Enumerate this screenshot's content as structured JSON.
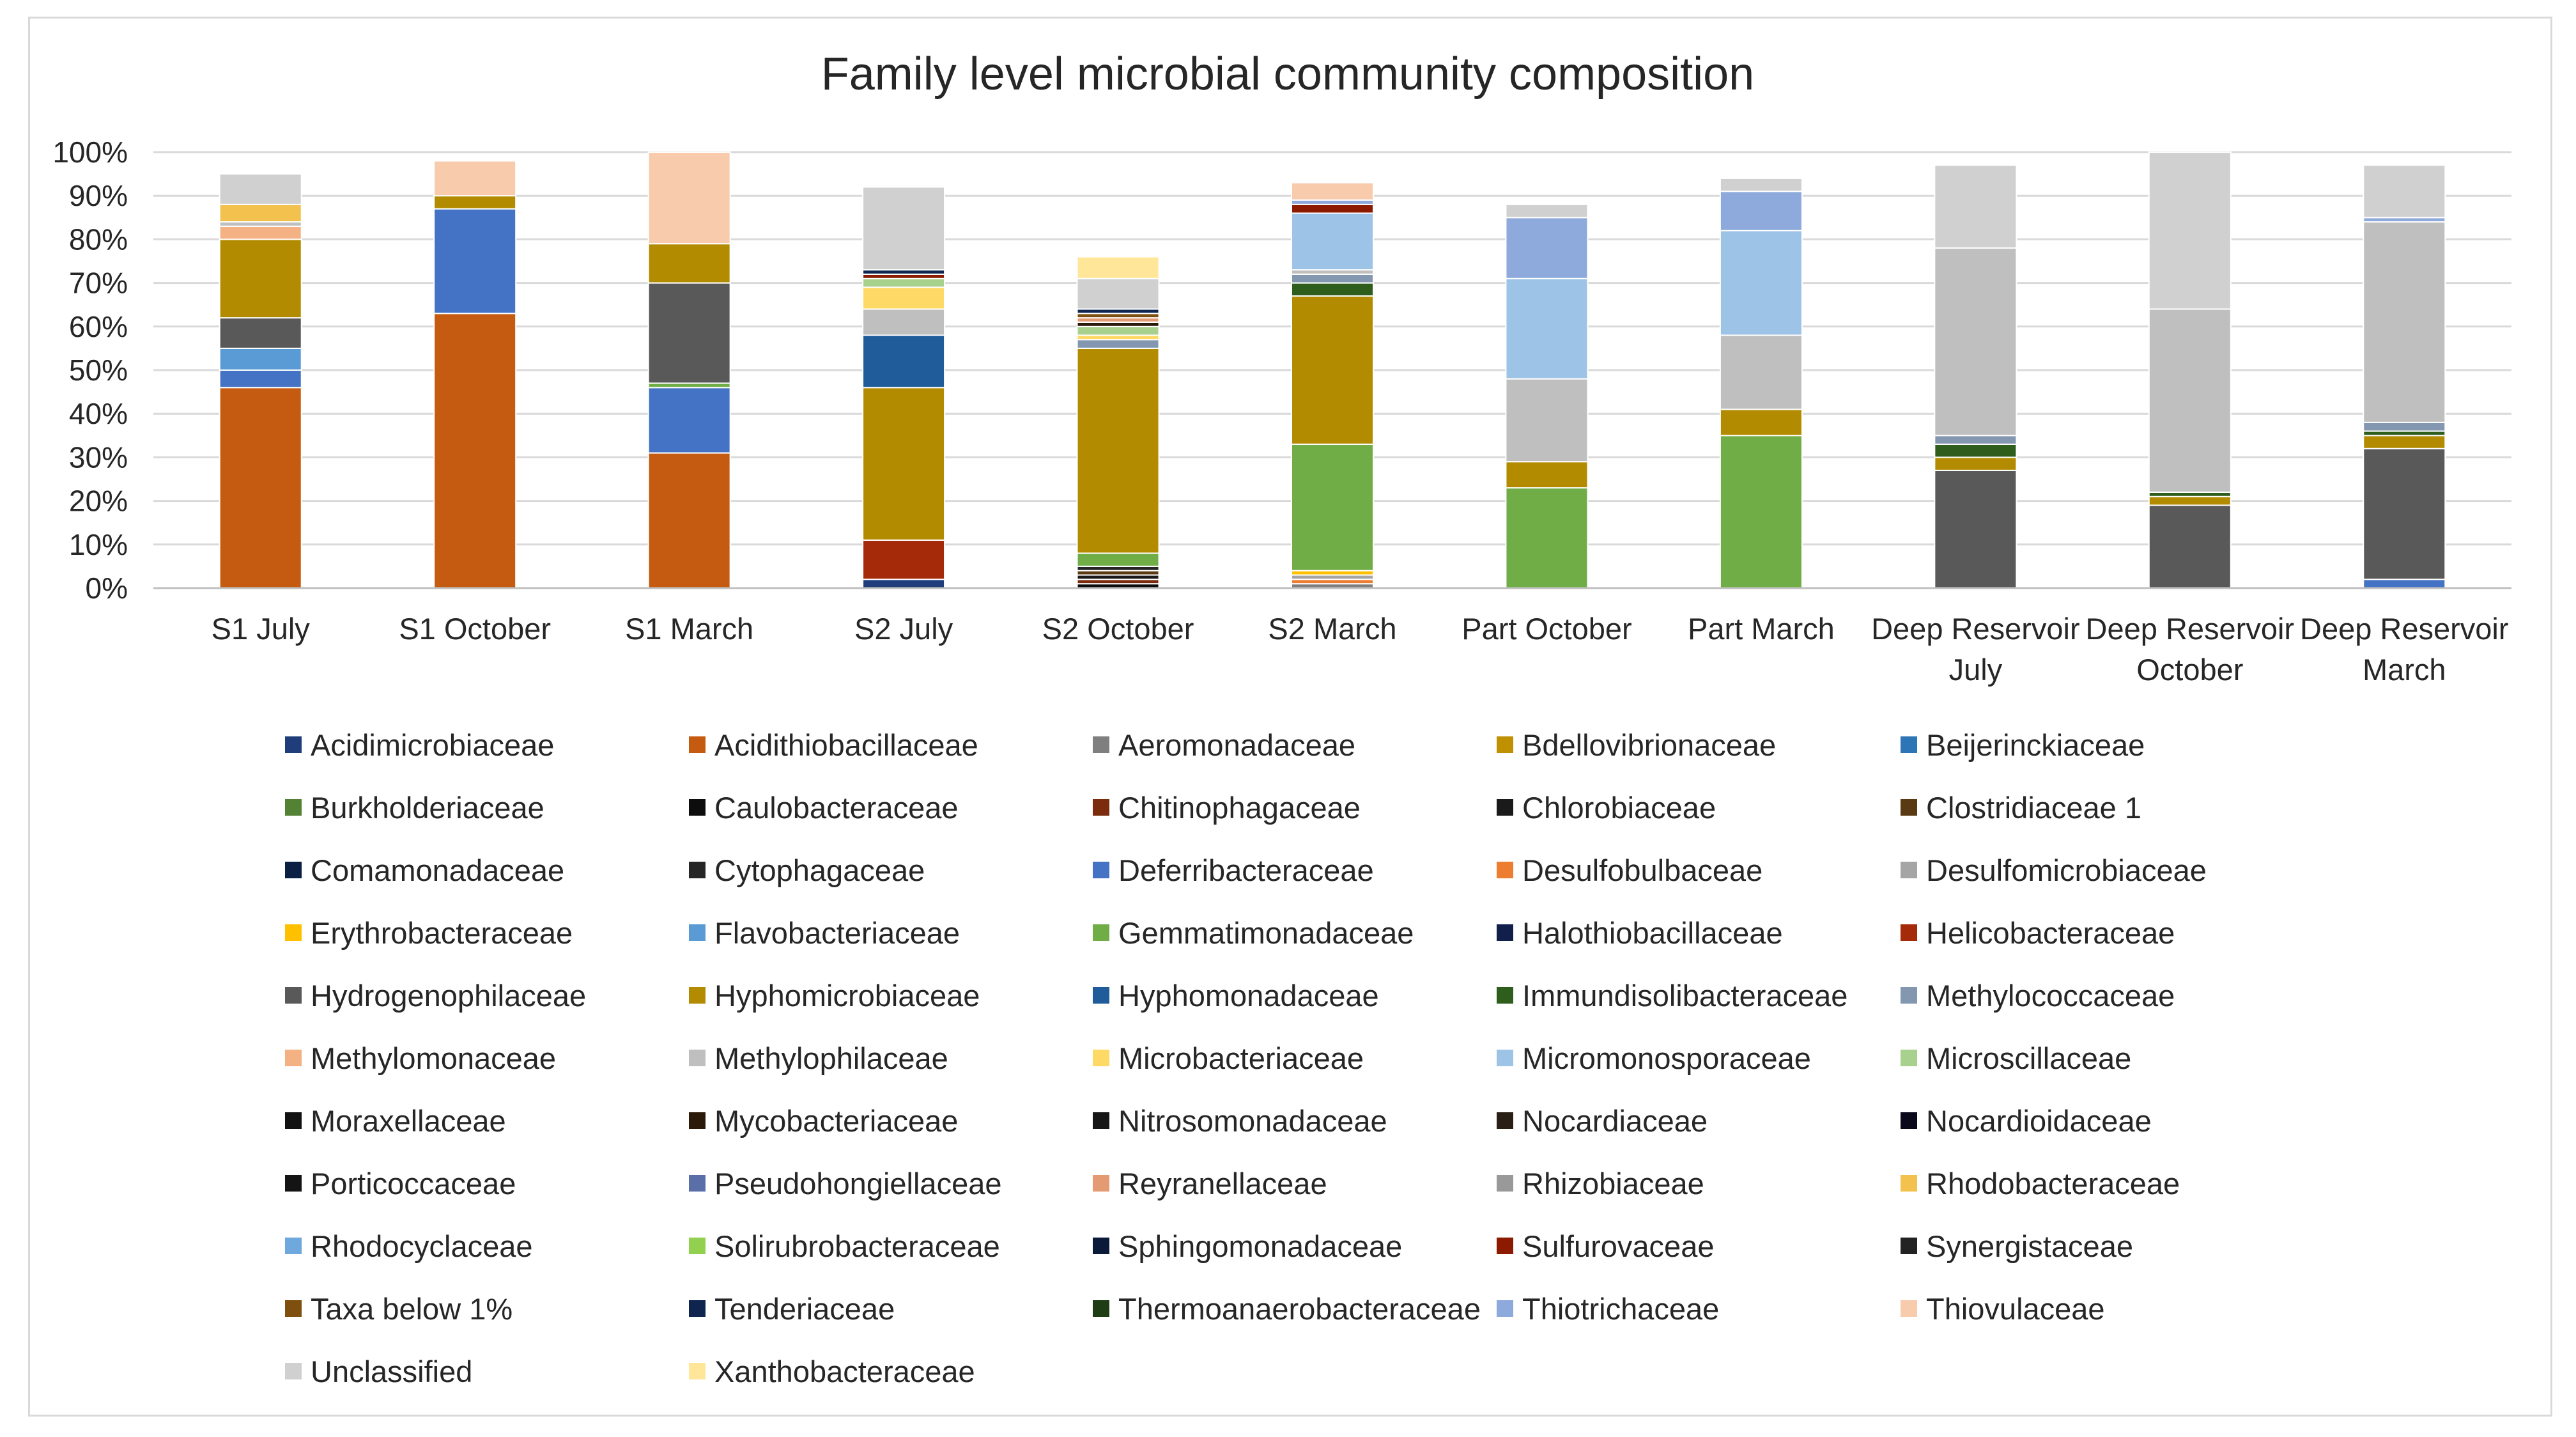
{
  "chart_data": {
    "type": "bar",
    "stacked": true,
    "title": "Family level microbial community composition",
    "xlabel": "",
    "ylabel": "",
    "ylim": [
      0,
      100
    ],
    "yticks": [
      "0%",
      "10%",
      "20%",
      "30%",
      "40%",
      "50%",
      "60%",
      "70%",
      "80%",
      "90%",
      "100%"
    ],
    "grid": true,
    "legend_position": "bottom",
    "categories": [
      [
        "S1 July"
      ],
      [
        "S1 October"
      ],
      [
        "S1 March"
      ],
      [
        "S2 July"
      ],
      [
        "S2 October"
      ],
      [
        "S2 March"
      ],
      [
        "Part October"
      ],
      [
        "Part March"
      ],
      [
        "Deep Reservoir",
        "July"
      ],
      [
        "Deep Reservoir",
        "October"
      ],
      [
        "Deep Reservoir",
        "March"
      ]
    ],
    "legend": [
      {
        "name": "Acidimicrobiaceae",
        "color": "#1f3d7a"
      },
      {
        "name": "Acidithiobacillaceae",
        "color": "#c55a11"
      },
      {
        "name": "Aeromonadaceae",
        "color": "#7f7f7f"
      },
      {
        "name": "Bdellovibrionaceae",
        "color": "#bf9000"
      },
      {
        "name": "Beijerinckiaceae",
        "color": "#2e75b6"
      },
      {
        "name": "Burkholderiaceae",
        "color": "#548235"
      },
      {
        "name": "Caulobacteraceae",
        "color": "#0d0d0d"
      },
      {
        "name": "Chitinophagaceae",
        "color": "#7b2c0c"
      },
      {
        "name": "Chlorobiaceae",
        "color": "#1a1a1a"
      },
      {
        "name": "Clostridiaceae 1",
        "color": "#5a3a12"
      },
      {
        "name": "Comamonadaceae",
        "color": "#0b1f45"
      },
      {
        "name": "Cytophagaceae",
        "color": "#262626"
      },
      {
        "name": "Deferribacteraceae",
        "color": "#4472c4"
      },
      {
        "name": "Desulfobulbaceae",
        "color": "#ed7d31"
      },
      {
        "name": "Desulfomicrobiaceae",
        "color": "#a5a5a5"
      },
      {
        "name": "Erythrobacteraceae",
        "color": "#ffc000"
      },
      {
        "name": "Flavobacteriaceae",
        "color": "#5b9bd5"
      },
      {
        "name": "Gemmatimonadaceae",
        "color": "#70ad47"
      },
      {
        "name": "Halothiobacillaceae",
        "color": "#10204a"
      },
      {
        "name": "Helicobacteraceae",
        "color": "#a52a0a"
      },
      {
        "name": "Hydrogenophilaceae",
        "color": "#595959"
      },
      {
        "name": "Hyphomicrobiaceae",
        "color": "#b38b00"
      },
      {
        "name": "Hyphomonadaceae",
        "color": "#1f5c99"
      },
      {
        "name": "Immundisolibacteraceae",
        "color": "#2e5d1c"
      },
      {
        "name": "Methylococcaceae",
        "color": "#8497b0"
      },
      {
        "name": "Methylomonaceae",
        "color": "#f4b183"
      },
      {
        "name": "Methylophilaceae",
        "color": "#bfbfbf"
      },
      {
        "name": "Microbacteriaceae",
        "color": "#ffd966"
      },
      {
        "name": "Micromonosporaceae",
        "color": "#9dc3e6"
      },
      {
        "name": "Microscillaceae",
        "color": "#a9d18e"
      },
      {
        "name": "Moraxellaceae",
        "color": "#121212"
      },
      {
        "name": "Mycobacteriaceae",
        "color": "#2b1a0a"
      },
      {
        "name": "Nitrosomonadaceae",
        "color": "#161616"
      },
      {
        "name": "Nocardiaceae",
        "color": "#2a1f14"
      },
      {
        "name": "Nocardioidaceae",
        "color": "#0a0a1a"
      },
      {
        "name": "Porticoccaceae",
        "color": "#141414"
      },
      {
        "name": "Pseudohongiellaceae",
        "color": "#5a6fa8"
      },
      {
        "name": "Reyranellaceae",
        "color": "#e49b74"
      },
      {
        "name": "Rhizobiaceae",
        "color": "#999999"
      },
      {
        "name": "Rhodobacteraceae",
        "color": "#f2c14e"
      },
      {
        "name": "Rhodocyclaceae",
        "color": "#6fa8dc"
      },
      {
        "name": "Solirubrobacteraceae",
        "color": "#92d050"
      },
      {
        "name": "Sphingomonadaceae",
        "color": "#0c1a3a"
      },
      {
        "name": "Sulfurovaceae",
        "color": "#8b1a00"
      },
      {
        "name": "Synergistaceae",
        "color": "#222222"
      },
      {
        "name": "Taxa below 1%",
        "color": "#7f4f10"
      },
      {
        "name": "Tenderiaceae",
        "color": "#0f2550"
      },
      {
        "name": "Thermoanaerobacteraceae",
        "color": "#1e3d14"
      },
      {
        "name": "Thiotrichaceae",
        "color": "#8ea9db"
      },
      {
        "name": "Thiovulaceae",
        "color": "#f8cbad"
      },
      {
        "name": "Unclassified",
        "color": "#d0d0d0"
      },
      {
        "name": "Xanthobacteraceae",
        "color": "#ffe699"
      }
    ],
    "series": [
      {
        "name": "Acidimicrobiaceae",
        "values": [
          0,
          0,
          0,
          2,
          0,
          0,
          0,
          0,
          0,
          0,
          0
        ]
      },
      {
        "name": "Acidithiobacillaceae",
        "values": [
          46,
          63,
          31,
          0,
          0,
          0,
          0,
          0,
          0,
          0,
          0
        ]
      },
      {
        "name": "Aeromonadaceae",
        "values": [
          0,
          0,
          0,
          0,
          0,
          1,
          0,
          0,
          0,
          0,
          0
        ]
      },
      {
        "name": "Bdellovibrionaceae",
        "values": [
          0,
          0,
          0,
          0,
          0,
          0,
          0,
          0,
          0,
          0,
          0
        ]
      },
      {
        "name": "Beijerinckiaceae",
        "values": [
          0,
          0,
          0,
          0,
          0,
          0,
          0,
          0,
          0,
          0,
          0
        ]
      },
      {
        "name": "Burkholderiaceae",
        "values": [
          0,
          0,
          0,
          0,
          0,
          0,
          0,
          0,
          0,
          0,
          0
        ]
      },
      {
        "name": "Caulobacteraceae",
        "values": [
          0,
          0,
          0,
          0,
          1,
          0,
          0,
          0,
          0,
          0,
          0
        ]
      },
      {
        "name": "Chitinophagaceae",
        "values": [
          0,
          0,
          0,
          0,
          1,
          0,
          0,
          0,
          0,
          0,
          0
        ]
      },
      {
        "name": "Chlorobiaceae",
        "values": [
          0,
          0,
          0,
          0,
          1,
          0,
          0,
          0,
          0,
          0,
          0
        ]
      },
      {
        "name": "Clostridiaceae 1",
        "values": [
          0,
          0,
          0,
          0,
          1,
          0,
          0,
          0,
          0,
          0,
          0
        ]
      },
      {
        "name": "Comamonadaceae",
        "values": [
          0,
          0,
          0,
          0,
          0,
          0,
          0,
          0,
          0,
          0,
          0
        ]
      },
      {
        "name": "Cytophagaceae",
        "values": [
          0,
          0,
          0,
          0,
          1,
          0,
          0,
          0,
          0,
          0,
          0
        ]
      },
      {
        "name": "Deferribacteraceae",
        "values": [
          4,
          24,
          15,
          0,
          0,
          0,
          0,
          0,
          0,
          0,
          2
        ]
      },
      {
        "name": "Desulfobulbaceae",
        "values": [
          0,
          0,
          0,
          0,
          0,
          1,
          0,
          0,
          0,
          0,
          0
        ]
      },
      {
        "name": "Desulfomicrobiaceae",
        "values": [
          0,
          0,
          0,
          0,
          0,
          1,
          0,
          0,
          0,
          0,
          0
        ]
      },
      {
        "name": "Erythrobacteraceae",
        "values": [
          0,
          0,
          0,
          0,
          0,
          1,
          0,
          0,
          0,
          0,
          0
        ]
      },
      {
        "name": "Flavobacteriaceae",
        "values": [
          5,
          0,
          0,
          0,
          0,
          0,
          0,
          0,
          0,
          0,
          0
        ]
      },
      {
        "name": "Gemmatimonadaceae",
        "values": [
          0,
          0,
          1,
          0,
          3,
          29,
          23,
          35,
          0,
          0,
          0
        ]
      },
      {
        "name": "Halothiobacillaceae",
        "values": [
          0,
          0,
          0,
          0,
          0,
          0,
          0,
          0,
          0,
          0,
          0
        ]
      },
      {
        "name": "Helicobacteraceae",
        "values": [
          0,
          0,
          0,
          9,
          0,
          0,
          0,
          0,
          0,
          0,
          0
        ]
      },
      {
        "name": "Hydrogenophilaceae",
        "values": [
          7,
          0,
          23,
          0,
          0,
          0,
          0,
          0,
          27,
          19,
          30
        ]
      },
      {
        "name": "Hyphomicrobiaceae",
        "values": [
          18,
          3,
          9,
          35,
          47,
          34,
          6,
          6,
          3,
          2,
          3
        ]
      },
      {
        "name": "Hyphomonadaceae",
        "values": [
          0,
          0,
          0,
          12,
          0,
          0,
          0,
          0,
          0,
          0,
          0
        ]
      },
      {
        "name": "Immundisolibacteraceae",
        "values": [
          0,
          0,
          0,
          0,
          0,
          3,
          0,
          0,
          3,
          1,
          1
        ]
      },
      {
        "name": "Methylococcaceae",
        "values": [
          0,
          0,
          0,
          0,
          2,
          2,
          0,
          0,
          2,
          0,
          2
        ]
      },
      {
        "name": "Methylomonaceae",
        "values": [
          3,
          0,
          0,
          0,
          0,
          0,
          0,
          0,
          0,
          0,
          0
        ]
      },
      {
        "name": "Methylophilaceae",
        "values": [
          1,
          0,
          0,
          6,
          0,
          1,
          19,
          17,
          43,
          42,
          46
        ]
      },
      {
        "name": "Microbacteriaceae",
        "values": [
          0,
          0,
          0,
          5,
          1,
          0,
          0,
          0,
          0,
          0,
          0
        ]
      },
      {
        "name": "Micromonosporaceae",
        "values": [
          0,
          0,
          0,
          0,
          0,
          13,
          23,
          24,
          0,
          0,
          0
        ]
      },
      {
        "name": "Microscillaceae",
        "values": [
          0,
          0,
          0,
          2,
          2,
          0,
          0,
          0,
          0,
          0,
          0
        ]
      },
      {
        "name": "Moraxellaceae",
        "values": [
          0,
          0,
          0,
          0,
          0,
          0,
          0,
          0,
          0,
          0,
          0
        ]
      },
      {
        "name": "Mycobacteriaceae",
        "values": [
          0,
          0,
          0,
          0,
          1,
          0,
          0,
          0,
          0,
          0,
          0
        ]
      },
      {
        "name": "Nitrosomonadaceae",
        "values": [
          0,
          0,
          0,
          0,
          0,
          0,
          0,
          0,
          0,
          0,
          0
        ]
      },
      {
        "name": "Nocardiaceae",
        "values": [
          0,
          0,
          0,
          0,
          0,
          0,
          0,
          0,
          0,
          0,
          0
        ]
      },
      {
        "name": "Nocardioidaceae",
        "values": [
          0,
          0,
          0,
          0,
          0,
          0,
          0,
          0,
          0,
          0,
          0
        ]
      },
      {
        "name": "Porticoccaceae",
        "values": [
          0,
          0,
          0,
          0,
          0,
          0,
          0,
          0,
          0,
          0,
          0
        ]
      },
      {
        "name": "Pseudohongiellaceae",
        "values": [
          0,
          0,
          0,
          0,
          0,
          0,
          0,
          0,
          0,
          0,
          0
        ]
      },
      {
        "name": "Reyranellaceae",
        "values": [
          0,
          0,
          0,
          0,
          1,
          0,
          0,
          0,
          0,
          0,
          0
        ]
      },
      {
        "name": "Rhizobiaceae",
        "values": [
          0,
          0,
          0,
          0,
          0,
          0,
          0,
          0,
          0,
          0,
          0
        ]
      },
      {
        "name": "Rhodobacteraceae",
        "values": [
          4,
          0,
          0,
          0,
          0,
          0,
          0,
          0,
          0,
          0,
          0
        ]
      },
      {
        "name": "Rhodocyclaceae",
        "values": [
          0,
          0,
          0,
          0,
          0,
          0,
          0,
          0,
          0,
          0,
          0
        ]
      },
      {
        "name": "Solirubrobacteraceae",
        "values": [
          0,
          0,
          0,
          0,
          0,
          0,
          0,
          0,
          0,
          0,
          0
        ]
      },
      {
        "name": "Sphingomonadaceae",
        "values": [
          0,
          0,
          0,
          0,
          0,
          0,
          0,
          0,
          0,
          0,
          0
        ]
      },
      {
        "name": "Sulfurovaceae",
        "values": [
          0,
          0,
          0,
          1,
          0,
          2,
          0,
          0,
          0,
          0,
          0
        ]
      },
      {
        "name": "Synergistaceae",
        "values": [
          0,
          0,
          0,
          0,
          0,
          0,
          0,
          0,
          0,
          0,
          0
        ]
      },
      {
        "name": "Taxa below 1%",
        "values": [
          0,
          0,
          0,
          0,
          1,
          0,
          0,
          0,
          0,
          0,
          0
        ]
      },
      {
        "name": "Tenderiaceae",
        "values": [
          0,
          0,
          0,
          1,
          1,
          0,
          0,
          0,
          0,
          0,
          0
        ]
      },
      {
        "name": "Thermoanaerobacteraceae",
        "values": [
          0,
          0,
          0,
          0,
          0,
          0,
          0,
          0,
          0,
          0,
          0
        ]
      },
      {
        "name": "Thiotrichaceae",
        "values": [
          0,
          0,
          0,
          0,
          0,
          1,
          14,
          9,
          0,
          0,
          1
        ]
      },
      {
        "name": "Thiovulaceae",
        "values": [
          0,
          8,
          21,
          0,
          0,
          4,
          0,
          0,
          0,
          0,
          0
        ]
      },
      {
        "name": "Unclassified",
        "values": [
          7,
          0,
          0,
          19,
          7,
          0,
          3,
          3,
          19,
          36,
          12
        ]
      },
      {
        "name": "Xanthobacteraceae",
        "values": [
          0,
          0,
          0,
          0,
          5,
          0,
          0,
          0,
          0,
          0,
          0
        ]
      }
    ]
  }
}
